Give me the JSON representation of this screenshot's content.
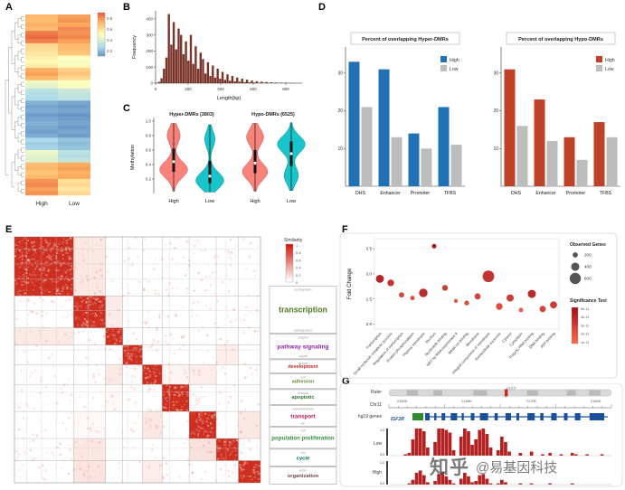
{
  "figure": {
    "background": "#ffffff",
    "watermark": {
      "brand": "知乎",
      "account": "@易基因科技"
    }
  },
  "panel_labels": {
    "a": "A",
    "b": "B",
    "c": "C",
    "d": "D",
    "e": "E",
    "f": "F",
    "g": "G"
  },
  "chart_data": [
    {
      "id": "A",
      "type": "heatmap",
      "description": "DMR methylation heatmap with row dendrogram, columns are sample groups",
      "columns": [
        "High",
        "Low"
      ],
      "colorbar_ticks": [
        "0.8",
        "0.6",
        "0.4",
        "0.2"
      ],
      "colormap": [
        "#4575b4",
        "#abd9e9",
        "#ffffbf",
        "#fdae61",
        "#d73027"
      ],
      "rows": [
        [
          0.72,
          0.78
        ],
        [
          0.7,
          0.8
        ],
        [
          0.74,
          0.76
        ],
        [
          0.71,
          0.82
        ],
        [
          0.85,
          0.8
        ],
        [
          0.88,
          0.83
        ],
        [
          0.84,
          0.78
        ],
        [
          0.62,
          0.72
        ],
        [
          0.6,
          0.7
        ],
        [
          0.58,
          0.68
        ],
        [
          0.55,
          0.5
        ],
        [
          0.52,
          0.48
        ],
        [
          0.56,
          0.52
        ],
        [
          0.75,
          0.65
        ],
        [
          0.78,
          0.68
        ],
        [
          0.72,
          0.62
        ],
        [
          0.45,
          0.5
        ],
        [
          0.42,
          0.48
        ],
        [
          0.3,
          0.35
        ],
        [
          0.28,
          0.32
        ],
        [
          0.26,
          0.3
        ],
        [
          0.15,
          0.12
        ],
        [
          0.12,
          0.1
        ],
        [
          0.14,
          0.12
        ],
        [
          0.1,
          0.08
        ],
        [
          0.12,
          0.1
        ],
        [
          0.15,
          0.12
        ],
        [
          0.13,
          0.1
        ],
        [
          0.11,
          0.12
        ],
        [
          0.14,
          0.1
        ],
        [
          0.25,
          0.2
        ],
        [
          0.22,
          0.18
        ],
        [
          0.24,
          0.2
        ],
        [
          0.45,
          0.3
        ],
        [
          0.42,
          0.28
        ],
        [
          0.4,
          0.32
        ],
        [
          0.7,
          0.75
        ],
        [
          0.72,
          0.78
        ],
        [
          0.68,
          0.74
        ],
        [
          0.71,
          0.76
        ],
        [
          0.8,
          0.6
        ],
        [
          0.82,
          0.62
        ],
        [
          0.78,
          0.58
        ],
        [
          0.8,
          0.62
        ]
      ]
    },
    {
      "id": "B",
      "type": "bar",
      "xlabel": "Length(bp)",
      "ylabel": "Frequency",
      "x_ticks": [
        "0",
        "200",
        "400",
        "600",
        "800"
      ],
      "y_ticks": [
        "0",
        "100",
        "200",
        "300",
        "400"
      ],
      "x_max": 900,
      "y_max": 450,
      "bin_width_bp": 15,
      "bar_color": "#7a352a",
      "values": [
        2,
        8,
        30,
        90,
        160,
        430,
        240,
        380,
        210,
        340,
        300,
        180,
        260,
        140,
        300,
        120,
        230,
        90,
        190,
        150,
        60,
        130,
        45,
        110,
        35,
        90,
        28,
        70,
        20,
        55,
        15,
        45,
        12,
        35,
        9,
        28,
        7,
        22,
        5,
        16,
        4,
        12,
        3,
        9,
        3,
        7,
        2,
        5,
        2,
        4,
        1,
        3,
        1,
        3,
        1,
        2,
        1,
        1,
        1,
        1
      ]
    },
    {
      "id": "C",
      "type": "violin",
      "ylabel": "Methylation",
      "group_titles": [
        "Hyper-DMRs (3803)",
        "Hypo-DMRs (6525)"
      ],
      "x_labels": [
        "High",
        "Low",
        "High",
        "Low"
      ],
      "y_ticks": [
        "0.2",
        "0.4",
        "0.6",
        "0.8",
        "1.0"
      ],
      "violins": [
        {
          "group": "Hyper-DMRs High",
          "color": "#f8766d",
          "median": 0.44,
          "q1": 0.3,
          "q3": 0.62,
          "lo": 0.03,
          "hi": 0.97,
          "bulges": [
            [
              0.33,
              1.0
            ],
            [
              0.8,
              0.45
            ]
          ]
        },
        {
          "group": "Hyper-DMRs Low",
          "color": "#00bfc4",
          "median": 0.24,
          "q1": 0.14,
          "q3": 0.45,
          "lo": 0.02,
          "hi": 0.95,
          "bulges": [
            [
              0.18,
              1.0
            ],
            [
              0.75,
              0.35
            ]
          ]
        },
        {
          "group": "Hypo-DMRs High",
          "color": "#f8766d",
          "median": 0.42,
          "q1": 0.28,
          "q3": 0.6,
          "lo": 0.03,
          "hi": 0.97,
          "bulges": [
            [
              0.3,
              0.9
            ],
            [
              0.78,
              0.6
            ]
          ]
        },
        {
          "group": "Hypo-DMRs Low",
          "color": "#00bfc4",
          "median": 0.55,
          "q1": 0.38,
          "q3": 0.72,
          "lo": 0.04,
          "hi": 0.98,
          "bulges": [
            [
              0.68,
              1.0
            ],
            [
              0.25,
              0.5
            ]
          ]
        }
      ]
    },
    {
      "id": "D1",
      "type": "bar",
      "title": "Percent of overlapping Hyper-DMRs",
      "categories": [
        "DHS",
        "Enhancer",
        "Promoter",
        "TFBS"
      ],
      "y_ticks": [
        "10",
        "20",
        "30"
      ],
      "ylim": [
        0,
        35
      ],
      "series": [
        {
          "name": "High",
          "color": "#2171b5",
          "values": [
            33,
            31,
            14,
            21
          ]
        },
        {
          "name": "Low",
          "color": "#bdbdbd",
          "values": [
            21,
            13,
            10,
            11
          ]
        }
      ]
    },
    {
      "id": "D2",
      "type": "bar",
      "title": "Percent of overlapping Hypo-DMRs",
      "categories": [
        "DHS",
        "Enhancer",
        "Promoter",
        "TFBS"
      ],
      "y_ticks": [
        "10",
        "20",
        "30"
      ],
      "ylim": [
        0,
        35
      ],
      "series": [
        {
          "name": "High",
          "color": "#bf4228",
          "values": [
            31,
            23,
            13,
            17
          ]
        },
        {
          "name": "Low",
          "color": "#bdbdbd",
          "values": [
            16,
            12,
            7,
            13
          ]
        }
      ]
    },
    {
      "id": "E",
      "type": "heatmap",
      "description": "GO term similarity matrix with clustered functional modules",
      "legend_title": "Similarity",
      "legend_ticks": [
        "1",
        "0.8",
        "0.6",
        "0.4",
        "0.2",
        "0"
      ],
      "high_color": "#cc1a0a",
      "clusters": [
        {
          "size": 0.24,
          "label": "transcription",
          "color": "#4c7a1e",
          "sublabels": [
            "nucleoplasm",
            "dysregulated"
          ]
        },
        {
          "size": 0.13,
          "label": "pathway signaling",
          "color": "#8e24aa",
          "sublabels": [
            "receptor",
            "signal"
          ]
        },
        {
          "size": 0.07,
          "label": "development",
          "color": "#c62828",
          "sublabels": [
            "muscle"
          ]
        },
        {
          "size": 0.08,
          "label": "adhesion",
          "color": "#6d8f3a",
          "sublabels": [
            "cell"
          ]
        },
        {
          "size": 0.08,
          "label": "apoptotic",
          "color": "#2e7d32",
          "sublabels": [
            "process"
          ]
        },
        {
          "size": 0.11,
          "label": "transport",
          "color": "#c2185b",
          "sublabels": [
            "transmembrane",
            "ion"
          ]
        },
        {
          "size": 0.11,
          "label": "population proliferation",
          "color": "#388e3c",
          "sublabels": [
            "cell"
          ]
        },
        {
          "size": 0.09,
          "label": "cycle",
          "color": "#00695c",
          "sublabels": [
            "cell",
            "repair"
          ]
        },
        {
          "size": 0.09,
          "label": "organization",
          "color": "#6d4c41",
          "sublabels": [
            "actin"
          ]
        }
      ]
    },
    {
      "id": "F",
      "type": "scatter",
      "ylabel": "Fold Change",
      "y_ticks": [
        "2.0",
        "2.5",
        "3.0",
        "3.5"
      ],
      "ylim": [
        1.9,
        3.7
      ],
      "size_legend_title": "Observed Genes",
      "size_legend_values": [
        "200",
        "400",
        "600"
      ],
      "color_legend_title": "Significance Test",
      "color_legend_ticks": [
        "5e-11",
        "4e-11",
        "3e-11",
        "2e-11",
        "1e-11"
      ],
      "dot_colors": [
        "#fb6a4a",
        "#a50f15"
      ],
      "points": [
        {
          "term": "Transcription",
          "fold_change": 2.9,
          "genes": 380,
          "sig": 0.9
        },
        {
          "term": "Small molecule metabolic process",
          "fold_change": 2.82,
          "genes": 300,
          "sig": 0.7
        },
        {
          "term": "Regulation of transcription",
          "fold_change": 2.58,
          "genes": 200,
          "sig": 0.5
        },
        {
          "term": "Protein phosphorylation",
          "fold_change": 2.52,
          "genes": 150,
          "sig": 0.4
        },
        {
          "term": "Plasma membrane",
          "fold_change": 2.62,
          "genes": 420,
          "sig": 0.8
        },
        {
          "term": "Nucleus",
          "fold_change": 3.55,
          "genes": 160,
          "sig": 1.0
        },
        {
          "term": "Nucleotide binding",
          "fold_change": 2.72,
          "genes": 240,
          "sig": 0.6
        },
        {
          "term": "NRT by RNA polymerase II",
          "fold_change": 2.46,
          "genes": 120,
          "sig": 0.3
        },
        {
          "term": "Metal ion binding",
          "fold_change": 2.42,
          "genes": 180,
          "sig": 0.4
        },
        {
          "term": "Membrane",
          "fold_change": 2.55,
          "genes": 260,
          "sig": 0.5
        },
        {
          "term": "Integral component of membrane",
          "fold_change": 2.95,
          "genes": 620,
          "sig": 0.7
        },
        {
          "term": "Extracellular exosome",
          "fold_change": 2.35,
          "genes": 300,
          "sig": 0.4
        },
        {
          "term": "Cytosol",
          "fold_change": 2.52,
          "genes": 340,
          "sig": 0.6
        },
        {
          "term": "Cytoplasm",
          "fold_change": 2.28,
          "genes": 150,
          "sig": 0.2
        },
        {
          "term": "Poly(A) RNA binding",
          "fold_change": 2.6,
          "genes": 400,
          "sig": 0.8
        },
        {
          "term": "DNA binding",
          "fold_change": 2.3,
          "genes": 280,
          "sig": 0.5
        },
        {
          "term": "ATP binding",
          "fold_change": 2.38,
          "genes": 320,
          "sig": 0.6
        }
      ]
    },
    {
      "id": "G",
      "type": "genome-tracks",
      "track_labels": [
        "Ruler",
        "Chr11",
        "hg19 genes",
        "Low",
        "High"
      ],
      "band_label": "p15.5",
      "ruler_ticks": [
        "2150K",
        "2160K",
        "2170K",
        "2180K"
      ],
      "gene": {
        "name": "IGF2R",
        "color": "#1a4f9c",
        "utr_color": "#2e8b2e",
        "exons": [
          [
            0,
            0.025
          ],
          [
            0.05,
            0.012
          ],
          [
            0.09,
            0.02
          ],
          [
            0.14,
            0.035
          ],
          [
            0.2,
            0.012
          ],
          [
            0.25,
            0.02
          ],
          [
            0.3,
            0.045
          ],
          [
            0.38,
            0.018
          ],
          [
            0.44,
            0.03
          ],
          [
            0.5,
            0.015
          ],
          [
            0.56,
            0.04
          ],
          [
            0.63,
            0.018
          ],
          [
            0.69,
            0.03
          ],
          [
            0.76,
            0.02
          ],
          [
            0.82,
            0.03
          ],
          [
            0.9,
            0.08
          ]
        ]
      },
      "signal_color": "#b22222",
      "signal_axis": [
        "1.0",
        "0.0"
      ],
      "low_signal": [
        0,
        0,
        0,
        0,
        0.05,
        0.1,
        0.6,
        1,
        1,
        0.9,
        0.3,
        0,
        0.5,
        1,
        1,
        0.95,
        0.85,
        0.2,
        0,
        0.7,
        1,
        0.9,
        0.4,
        0.6,
        0.95,
        1,
        0.8,
        0.3,
        0,
        0.2,
        0.7,
        0.5,
        0.15,
        0,
        0,
        0.1,
        0,
        0,
        0.15,
        0,
        0,
        0.05,
        0,
        0.1,
        0,
        0,
        0.05,
        0,
        0,
        0.1,
        0.05,
        0,
        0,
        0.05,
        0,
        0,
        0,
        0.05,
        0,
        0
      ],
      "high_signal": [
        0,
        0,
        0,
        0,
        0,
        0.05,
        0.2,
        0.5,
        0.6,
        0.4,
        0.1,
        0,
        0.15,
        0.45,
        0.55,
        0.35,
        0.2,
        0.05,
        0,
        0.25,
        0.5,
        0.35,
        0.1,
        0.15,
        0.4,
        0.45,
        0.25,
        0.05,
        0,
        0.05,
        0.2,
        0.1,
        0,
        0,
        0,
        0.05,
        0,
        0,
        0.05,
        0,
        0,
        0,
        0,
        0.05,
        0,
        0,
        0,
        0,
        0,
        0.05,
        0,
        0,
        0,
        0,
        0,
        0,
        0,
        0,
        0,
        0
      ]
    }
  ]
}
